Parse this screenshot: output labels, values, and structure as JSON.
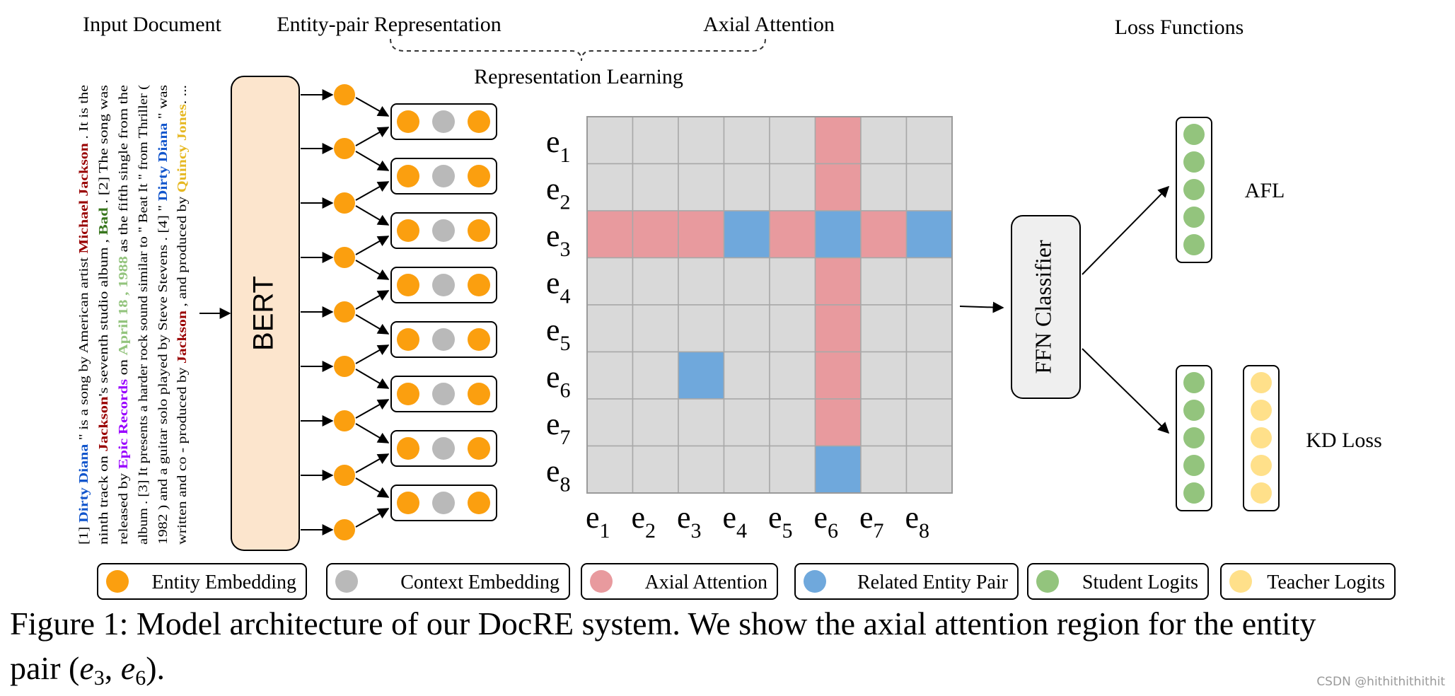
{
  "colors": {
    "entity": "#fb9f0f",
    "context": "#b9b9b9",
    "axial": "#e89a9e",
    "related": "#6fa8dc",
    "student": "#93c47d",
    "teacher": "#ffe08a",
    "grid_bg": "#d9d9d9",
    "bert_fill": "#fce5cd",
    "ffn_fill": "#efefef",
    "name_blue": "#1155cc",
    "name_red": "#990000",
    "name_green": "#38761d",
    "name_lightgreen": "#93c47d",
    "name_purple": "#9900ff",
    "name_yellow": "#e6b822"
  },
  "headings": {
    "input_document": "Input Document",
    "entity_pair": "Entity-pair Representation",
    "axial_attention": "Axial Attention",
    "representation_learning": "Representation Learning",
    "loss_functions": "Loss Functions"
  },
  "document_lines": [
    [
      {
        "t": "[1] "
      },
      {
        "t": "Dirty Diana",
        "c": "name_blue"
      },
      {
        "t": " \" is a song by American artist "
      },
      {
        "t": "Michael Jackson",
        "c": "name_red"
      },
      {
        "t": " . It is the"
      }
    ],
    [
      {
        "t": "ninth track on "
      },
      {
        "t": "Jackson",
        "c": "name_red"
      },
      {
        "t": "'s seventh studio album , "
      },
      {
        "t": "Bad",
        "c": "name_green"
      },
      {
        "t": " . [2] The song was"
      }
    ],
    [
      {
        "t": "released by "
      },
      {
        "t": "Epic Records",
        "c": "name_purple"
      },
      {
        "t": " on "
      },
      {
        "t": "April 18 , 1988",
        "c": "name_lightgreen"
      },
      {
        "t": " as the fifth single from the"
      }
    ],
    [
      {
        "t": "album . [3] It presents a harder rock sound similar to \" Beat It \" from Thriller ("
      }
    ],
    [
      {
        "t": "1982 ) and a guitar solo played by Steve Stevens . [4] \" "
      },
      {
        "t": "Dirty Diana",
        "c": "name_blue"
      },
      {
        "t": " \" was"
      }
    ],
    [
      {
        "t": "written and co - produced by "
      },
      {
        "t": "Jackson",
        "c": "name_red"
      },
      {
        "t": " , and produced by "
      },
      {
        "t": "Quincy Jones",
        "c": "name_yellow"
      },
      {
        "t": ". ..."
      }
    ]
  ],
  "encoder": {
    "label": "BERT"
  },
  "grid": {
    "row_labels": [
      {
        "base": "e",
        "sub": "1"
      },
      {
        "base": "e",
        "sub": "2"
      },
      {
        "base": "e",
        "sub": "3"
      },
      {
        "base": "e",
        "sub": "4"
      },
      {
        "base": "e",
        "sub": "5"
      },
      {
        "base": "e",
        "sub": "6"
      },
      {
        "base": "e",
        "sub": "7"
      },
      {
        "base": "e",
        "sub": "8"
      }
    ],
    "col_labels": [
      {
        "base": "e",
        "sub": "1"
      },
      {
        "base": "e",
        "sub": "2"
      },
      {
        "base": "e",
        "sub": "3"
      },
      {
        "base": "e",
        "sub": "4"
      },
      {
        "base": "e",
        "sub": "5"
      },
      {
        "base": "e",
        "sub": "6"
      },
      {
        "base": "e",
        "sub": "7"
      },
      {
        "base": "e",
        "sub": "8"
      }
    ],
    "cells": [
      [
        0,
        0,
        0,
        0,
        0,
        1,
        0,
        0
      ],
      [
        0,
        0,
        0,
        0,
        0,
        1,
        0,
        0
      ],
      [
        1,
        1,
        1,
        2,
        1,
        2,
        1,
        2
      ],
      [
        0,
        0,
        0,
        0,
        0,
        1,
        0,
        0
      ],
      [
        0,
        0,
        0,
        0,
        0,
        1,
        0,
        0
      ],
      [
        0,
        0,
        2,
        0,
        0,
        1,
        0,
        0
      ],
      [
        0,
        0,
        0,
        0,
        0,
        1,
        0,
        0
      ],
      [
        0,
        0,
        0,
        0,
        0,
        2,
        0,
        0
      ]
    ]
  },
  "classifier": {
    "label": "FFN Classifier"
  },
  "losses": {
    "afl": "AFL",
    "kd": "KD Loss"
  },
  "legend": [
    {
      "label": "Entity Embedding",
      "color": "entity"
    },
    {
      "label": "Context Embedding",
      "color": "context"
    },
    {
      "label": "Axial Attention",
      "color": "axial"
    },
    {
      "label": "Related Entity Pair",
      "color": "related"
    },
    {
      "label": "Student Logits",
      "color": "student"
    },
    {
      "label": "Teacher Logits",
      "color": "teacher"
    }
  ],
  "caption": {
    "line1": "Figure 1: Model architecture of our DocRE system. We show the axial attention region for the entity",
    "line2_prefix": "pair (",
    "pair": [
      {
        "base": "e",
        "sub": "3"
      },
      {
        "base": "e",
        "sub": "6"
      }
    ],
    "line2_suffix": ")."
  },
  "watermark": "CSDN @hithithithithit"
}
